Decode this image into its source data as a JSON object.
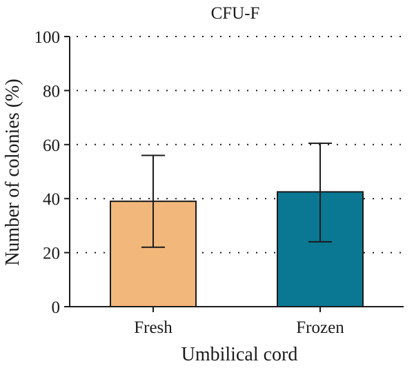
{
  "chart_data": {
    "type": "bar",
    "title": "CFU-F",
    "xlabel": "Umbilical cord",
    "ylabel": "Number of colonies (%)",
    "categories": [
      "Fresh",
      "Frozen"
    ],
    "values": [
      39,
      42.5
    ],
    "error_low": [
      22,
      24
    ],
    "error_high": [
      56,
      60.5
    ],
    "colors": [
      "#f2b77b",
      "#0b7893"
    ],
    "ylim": [
      0,
      100
    ],
    "yticks": [
      0,
      20,
      40,
      60,
      80,
      100
    ],
    "ytick_labels": [
      "0",
      "20",
      "40",
      "60",
      "80",
      "100"
    ],
    "grid": true
  }
}
